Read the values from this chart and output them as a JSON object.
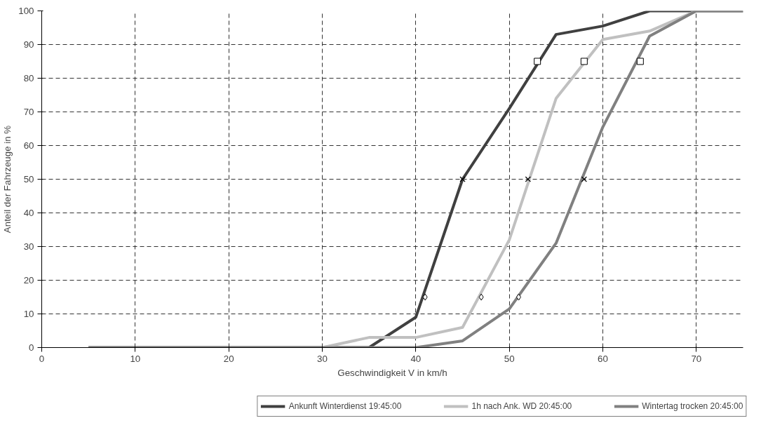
{
  "chart_data": {
    "type": "line",
    "xlabel": "Geschwindigkeit V in km/h",
    "ylabel": "Anteil der Fahrzeuge in %",
    "x": [
      5,
      10,
      15,
      20,
      25,
      30,
      35,
      40,
      45,
      50,
      55,
      60,
      65,
      70,
      75
    ],
    "xlim": [
      0,
      75
    ],
    "xticks": [
      0,
      10,
      20,
      30,
      40,
      50,
      60,
      70
    ],
    "ylim": [
      0,
      100
    ],
    "yticks": [
      0,
      10,
      20,
      30,
      40,
      50,
      60,
      70,
      80,
      90,
      100
    ],
    "grid": true,
    "legend": "bottom",
    "marker": "none",
    "series": [
      {
        "name": "Ankunft Winterdienst 19:45:00",
        "color": "#404040",
        "values": [
          0,
          0,
          0,
          0,
          0,
          0,
          0,
          9,
          50,
          71,
          93,
          95.5,
          100,
          100,
          100
        ]
      },
      {
        "name": "1h nach Ank. WD 20:45:00",
        "color": "#c0c0c0",
        "values": [
          0,
          0,
          0,
          0,
          0,
          0,
          3,
          3,
          6,
          32,
          74,
          91.5,
          94,
          100,
          100
        ]
      },
      {
        "name": "Wintertag trocken 20:45:00",
        "color": "#808080",
        "values": [
          0,
          0,
          0,
          0,
          0,
          0,
          0,
          0,
          2,
          11.5,
          31,
          65.5,
          92.5,
          100,
          100
        ]
      },
      {
        "type": "scatter",
        "marker": "diamond",
        "color": "#000000",
        "x": [
          41,
          47,
          51
        ],
        "values": [
          15,
          15,
          15
        ]
      },
      {
        "type": "scatter",
        "marker": "cross",
        "color": "#000000",
        "x": [
          45,
          52,
          58
        ],
        "values": [
          50,
          50,
          50
        ]
      },
      {
        "type": "scatter",
        "marker": "square",
        "color": "#000000",
        "x": [
          53,
          58,
          64
        ],
        "values": [
          85,
          85,
          85
        ]
      }
    ]
  }
}
